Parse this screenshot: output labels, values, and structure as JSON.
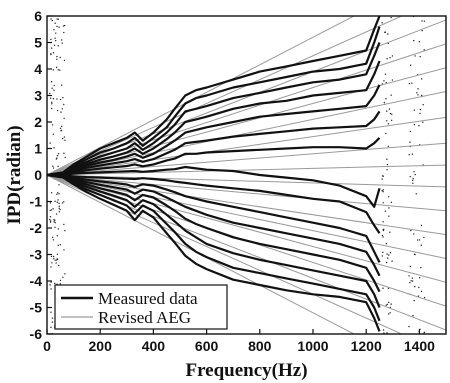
{
  "chart_data": {
    "type": "line",
    "title": "",
    "xlabel": "Frequency(Hz)",
    "ylabel": "IPD(radian)",
    "xlim": [
      0,
      1500
    ],
    "ylim": [
      -6,
      6
    ],
    "xticks": [
      0,
      200,
      400,
      600,
      800,
      1000,
      1200,
      1400
    ],
    "yticks": [
      -6,
      -5,
      -4,
      -3,
      -2,
      -1,
      0,
      1,
      2,
      3,
      4,
      5,
      6
    ],
    "grid": false,
    "legend": {
      "placement": "bottom-left",
      "entries": [
        {
          "label": "Measured data",
          "color": "#111111",
          "style": "thick"
        },
        {
          "label": "Revised AEG",
          "color": "#9a9a9a",
          "style": "thin"
        }
      ]
    },
    "series": [
      {
        "name": "Revised AEG",
        "kind": "reference-lines",
        "color": "#9a9a9a",
        "slopes_rad_per_hz": [
          0.0052,
          0.0045,
          0.0039,
          0.0033,
          0.0027,
          0.0021,
          0.00145,
          0.0008,
          0.00025,
          -0.0003,
          -0.0009,
          -0.0015,
          -0.0021,
          -0.0027,
          -0.0033,
          -0.0039,
          -0.0045,
          -0.0052
        ]
      },
      {
        "name": "Measured data",
        "kind": "curves",
        "color": "#111111",
        "curves": [
          {
            "x": [
              0,
              60,
              100,
              150,
              200,
              250,
              300,
              330,
              360,
              400,
              450,
              480,
              520,
              560,
              600,
              700,
              800,
              900,
              1000,
              1100,
              1200,
              1230,
              1250
            ],
            "y": [
              0,
              0.1,
              0.4,
              0.7,
              1.0,
              1.2,
              1.4,
              1.6,
              1.3,
              1.6,
              2.1,
              2.5,
              3.0,
              3.2,
              3.3,
              3.6,
              3.9,
              4.1,
              4.3,
              4.5,
              4.7,
              5.5,
              6.0
            ]
          },
          {
            "x": [
              0,
              60,
              100,
              150,
              200,
              250,
              300,
              330,
              360,
              400,
              450,
              480,
              520,
              560,
              600,
              700,
              800,
              900,
              1000,
              1100,
              1200,
              1230,
              1250
            ],
            "y": [
              0,
              0.1,
              0.35,
              0.6,
              0.85,
              1.0,
              1.2,
              1.4,
              1.1,
              1.4,
              1.8,
              2.2,
              2.7,
              2.9,
              3.0,
              3.3,
              3.5,
              3.7,
              3.9,
              4.0,
              4.2,
              5.0,
              5.6
            ]
          },
          {
            "x": [
              0,
              60,
              100,
              150,
              200,
              250,
              300,
              330,
              360,
              400,
              450,
              480,
              520,
              560,
              600,
              700,
              800,
              900,
              1000,
              1100,
              1200,
              1230,
              1250
            ],
            "y": [
              0,
              0.08,
              0.3,
              0.5,
              0.7,
              0.85,
              1.0,
              1.2,
              0.95,
              1.2,
              1.6,
              1.9,
              2.4,
              2.5,
              2.6,
              2.9,
              3.1,
              3.3,
              3.5,
              3.6,
              3.8,
              4.5,
              5.0
            ]
          },
          {
            "x": [
              0,
              60,
              100,
              150,
              200,
              250,
              300,
              330,
              360,
              400,
              450,
              480,
              520,
              560,
              600,
              700,
              800,
              900,
              1000,
              1100,
              1200,
              1230,
              1250
            ],
            "y": [
              0,
              0.07,
              0.25,
              0.42,
              0.58,
              0.7,
              0.85,
              1.0,
              0.8,
              1.0,
              1.35,
              1.6,
              2.0,
              2.1,
              2.2,
              2.5,
              2.7,
              2.8,
              3.0,
              3.1,
              3.2,
              3.8,
              4.3
            ]
          },
          {
            "x": [
              0,
              60,
              100,
              150,
              200,
              250,
              300,
              330,
              360,
              400,
              450,
              480,
              520,
              560,
              600,
              700,
              800,
              900,
              1000,
              1100,
              1200,
              1230,
              1250
            ],
            "y": [
              0,
              0.06,
              0.2,
              0.35,
              0.47,
              0.57,
              0.7,
              0.8,
              0.65,
              0.8,
              1.1,
              1.3,
              1.6,
              1.7,
              1.8,
              2.0,
              2.2,
              2.3,
              2.4,
              2.5,
              2.6,
              3.0,
              3.4
            ]
          },
          {
            "x": [
              0,
              60,
              100,
              150,
              200,
              250,
              300,
              330,
              360,
              400,
              450,
              480,
              520,
              560,
              600,
              700,
              800,
              900,
              1000,
              1100,
              1200,
              1230,
              1250
            ],
            "y": [
              0,
              0.05,
              0.15,
              0.27,
              0.36,
              0.44,
              0.52,
              0.6,
              0.5,
              0.6,
              0.82,
              0.95,
              1.2,
              1.25,
              1.3,
              1.45,
              1.55,
              1.65,
              1.75,
              1.8,
              1.85,
              2.1,
              2.4
            ]
          },
          {
            "x": [
              0,
              60,
              100,
              150,
              200,
              250,
              300,
              330,
              360,
              400,
              450,
              480,
              520,
              560,
              600,
              700,
              800,
              900,
              1000,
              1100,
              1200,
              1230,
              1250
            ],
            "y": [
              0,
              0.04,
              0.1,
              0.18,
              0.24,
              0.29,
              0.34,
              0.4,
              0.33,
              0.4,
              0.55,
              0.62,
              0.8,
              0.8,
              0.85,
              0.9,
              0.95,
              1.0,
              1.05,
              1.05,
              1.0,
              1.2,
              1.4
            ]
          },
          {
            "x": [
              0,
              60,
              100,
              150,
              200,
              250,
              300,
              330,
              360,
              400,
              450,
              480,
              520,
              560,
              600,
              700,
              800,
              900,
              1000,
              1100,
              1200,
              1230,
              1250
            ],
            "y": [
              0,
              0.02,
              0.05,
              0.08,
              0.1,
              0.12,
              0.14,
              0.15,
              0.12,
              0.15,
              0.2,
              0.22,
              0.3,
              0.25,
              0.2,
              0.15,
              0.0,
              -0.1,
              -0.2,
              -0.4,
              -0.8,
              -1.2,
              -0.5
            ]
          },
          {
            "x": [
              0,
              60,
              100,
              150,
              200,
              250,
              300,
              330,
              360,
              400,
              450,
              480,
              520,
              560,
              600,
              700,
              800,
              900,
              1000,
              1100,
              1200,
              1230,
              1250
            ],
            "y": [
              0,
              -0.02,
              -0.05,
              -0.08,
              -0.1,
              -0.12,
              -0.14,
              -0.15,
              -0.12,
              -0.15,
              -0.2,
              -0.25,
              -0.3,
              -0.35,
              -0.4,
              -0.5,
              -0.6,
              -0.75,
              -0.9,
              -1.0,
              -1.4,
              -1.9,
              -2.2
            ]
          },
          {
            "x": [
              0,
              60,
              100,
              150,
              200,
              250,
              300,
              330,
              360,
              400,
              450,
              480,
              520,
              560,
              600,
              700,
              800,
              900,
              1000,
              1100,
              1200,
              1230,
              1250
            ],
            "y": [
              0,
              -0.04,
              -0.1,
              -0.18,
              -0.24,
              -0.3,
              -0.36,
              -0.45,
              -0.35,
              -0.4,
              -0.55,
              -0.65,
              -0.8,
              -0.9,
              -1.0,
              -1.2,
              -1.4,
              -1.6,
              -1.8,
              -2.0,
              -2.3,
              -2.9,
              -3.3
            ]
          },
          {
            "x": [
              0,
              60,
              100,
              150,
              200,
              250,
              300,
              330,
              360,
              400,
              450,
              480,
              520,
              560,
              600,
              700,
              800,
              900,
              1000,
              1100,
              1200,
              1230,
              1250
            ],
            "y": [
              0,
              -0.05,
              -0.15,
              -0.27,
              -0.37,
              -0.46,
              -0.55,
              -0.7,
              -0.55,
              -0.62,
              -0.85,
              -1.0,
              -1.2,
              -1.35,
              -1.5,
              -1.8,
              -2.0,
              -2.2,
              -2.4,
              -2.6,
              -2.9,
              -3.4,
              -3.8
            ]
          },
          {
            "x": [
              0,
              60,
              100,
              150,
              200,
              250,
              300,
              330,
              360,
              400,
              450,
              480,
              520,
              560,
              600,
              700,
              800,
              900,
              1000,
              1100,
              1200,
              1230,
              1250
            ],
            "y": [
              0,
              -0.06,
              -0.2,
              -0.36,
              -0.5,
              -0.62,
              -0.75,
              -0.95,
              -0.75,
              -0.85,
              -1.15,
              -1.35,
              -1.65,
              -1.85,
              -2.0,
              -2.35,
              -2.6,
              -2.8,
              -3.0,
              -3.2,
              -3.5,
              -4.0,
              -4.4
            ]
          },
          {
            "x": [
              0,
              60,
              100,
              150,
              200,
              250,
              300,
              330,
              360,
              400,
              450,
              480,
              520,
              560,
              600,
              700,
              800,
              900,
              1000,
              1100,
              1200,
              1230,
              1250
            ],
            "y": [
              0,
              -0.07,
              -0.25,
              -0.45,
              -0.62,
              -0.78,
              -0.95,
              -1.2,
              -0.95,
              -1.1,
              -1.5,
              -1.75,
              -2.1,
              -2.35,
              -2.6,
              -2.95,
              -3.2,
              -3.4,
              -3.6,
              -3.8,
              -4.0,
              -4.5,
              -5.0
            ]
          },
          {
            "x": [
              0,
              60,
              100,
              150,
              200,
              250,
              300,
              330,
              360,
              400,
              450,
              480,
              520,
              560,
              600,
              700,
              800,
              900,
              1000,
              1100,
              1200,
              1230,
              1250
            ],
            "y": [
              0,
              -0.08,
              -0.3,
              -0.55,
              -0.75,
              -0.95,
              -1.15,
              -1.45,
              -1.15,
              -1.35,
              -1.85,
              -2.15,
              -2.6,
              -2.9,
              -3.1,
              -3.5,
              -3.7,
              -3.9,
              -4.1,
              -4.3,
              -4.5,
              -5.0,
              -5.5
            ]
          },
          {
            "x": [
              0,
              60,
              100,
              150,
              200,
              250,
              300,
              330,
              360,
              400,
              450,
              480,
              520,
              560,
              600,
              700,
              800,
              900,
              1000,
              1100,
              1200,
              1230,
              1250
            ],
            "y": [
              0,
              -0.1,
              -0.35,
              -0.65,
              -0.9,
              -1.12,
              -1.35,
              -1.7,
              -1.35,
              -1.6,
              -2.2,
              -2.55,
              -3.05,
              -3.35,
              -3.55,
              -3.95,
              -4.15,
              -4.35,
              -4.5,
              -4.6,
              -4.8,
              -5.4,
              -5.9
            ]
          }
        ]
      }
    ]
  }
}
